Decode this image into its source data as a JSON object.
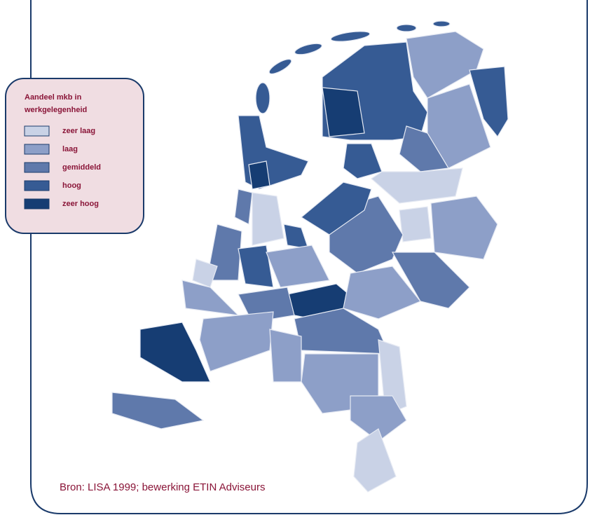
{
  "legend": {
    "title": [
      "Aandeel mkb in",
      "werkgelegenheid"
    ],
    "items": [
      {
        "label": "zeer laag",
        "color": "#c9d2e6"
      },
      {
        "label": "laag",
        "color": "#8d9fc8"
      },
      {
        "label": "gemiddeld",
        "color": "#5f79ab"
      },
      {
        "label": "hoog",
        "color": "#365b94"
      },
      {
        "label": "zeer hoog",
        "color": "#163d73"
      }
    ]
  },
  "source": "Bron: LISA 1999; bewerking ETIN Adviseurs"
}
